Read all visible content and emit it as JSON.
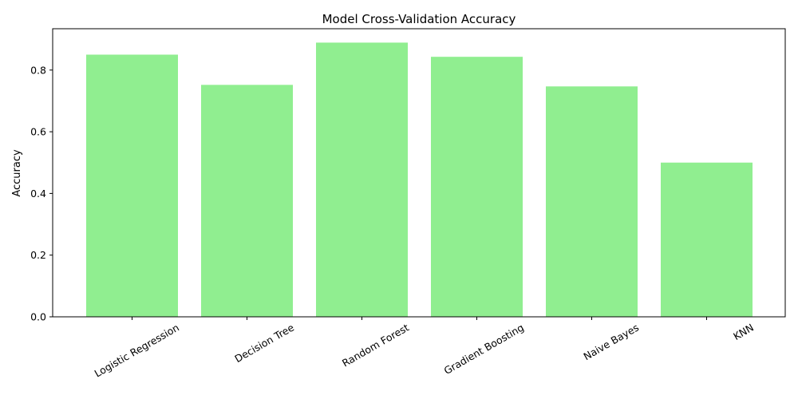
{
  "chart_data": {
    "type": "bar",
    "title": "Model Cross-Validation Accuracy",
    "xlabel": "",
    "ylabel": "Accuracy",
    "categories": [
      "Logistic Regression",
      "Decision Tree",
      "Random Forest",
      "Gradient Boosting",
      "Naive Bayes",
      "KNN"
    ],
    "values": [
      0.85,
      0.752,
      0.889,
      0.843,
      0.747,
      0.5
    ],
    "ylim": [
      0,
      0.934
    ],
    "yticks": [
      0.0,
      0.2,
      0.4,
      0.6,
      0.8
    ],
    "ytick_labels": [
      "0.0",
      "0.2",
      "0.4",
      "0.6",
      "0.8"
    ],
    "grid": false,
    "bar_color": "#90ee90",
    "xtick_rotation_deg": 30
  }
}
